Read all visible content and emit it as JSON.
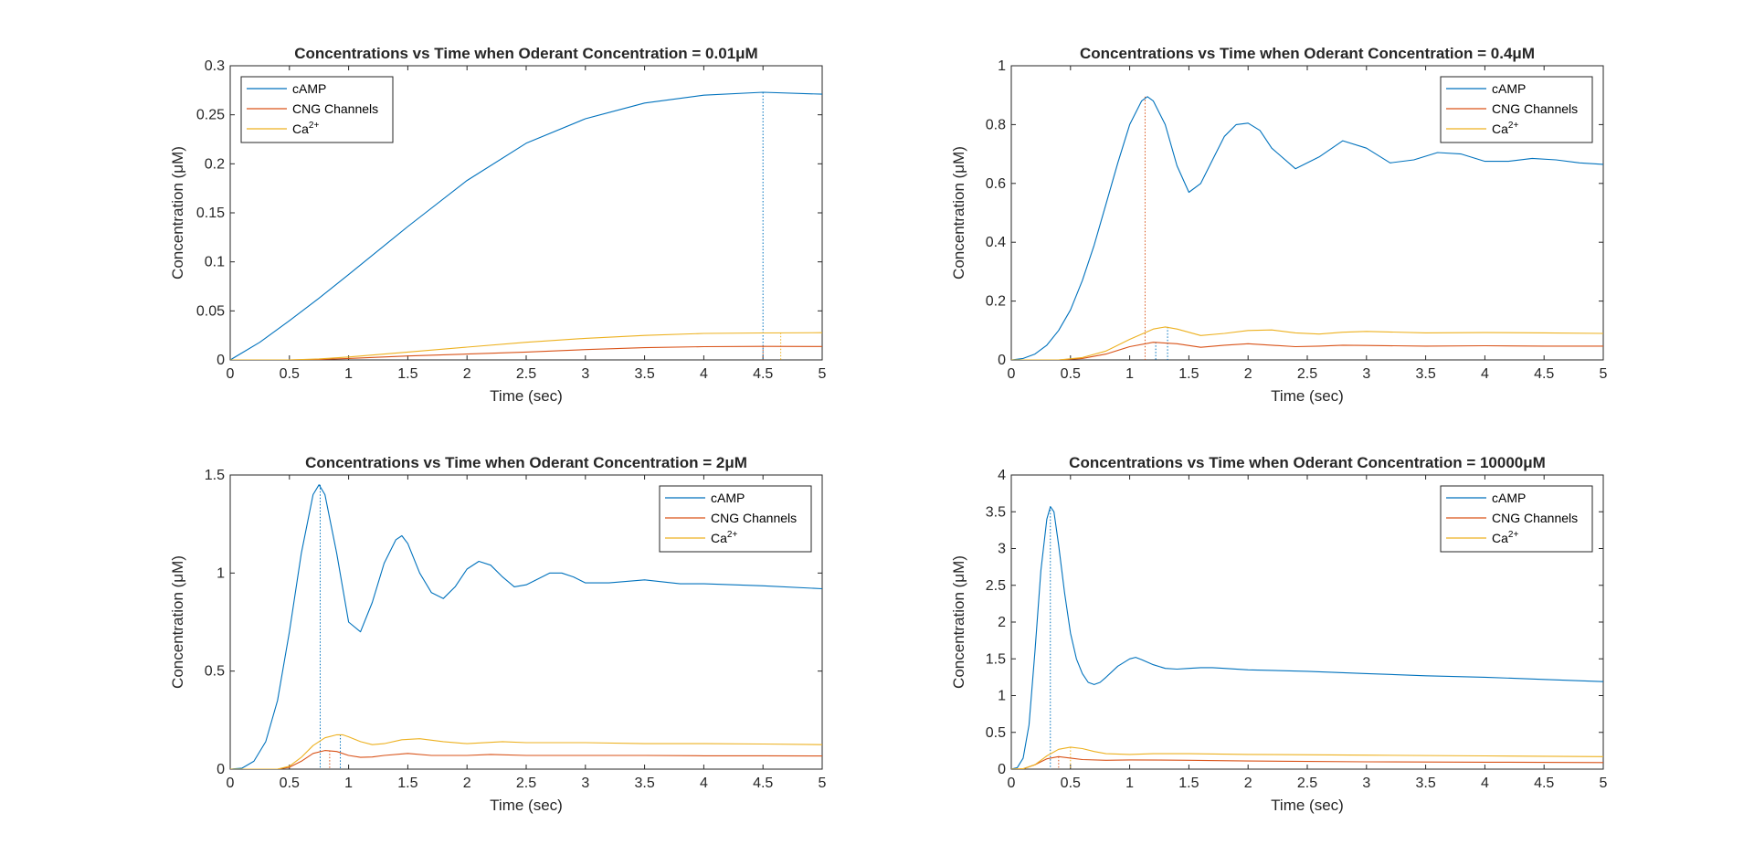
{
  "figure": {
    "background": "#ffffff"
  },
  "chart_data": [
    {
      "type": "line",
      "title": "Concentrations vs Time when Oderant Concentration = 0.01μM",
      "xlabel": "Time (sec)",
      "ylabel": "Concentration (μM)",
      "xlim": [
        0,
        5
      ],
      "ylim": [
        0,
        0.3
      ],
      "xticks": [
        0,
        0.5,
        1,
        1.5,
        2,
        2.5,
        3,
        3.5,
        4,
        4.5,
        5
      ],
      "yticks": [
        0,
        0.05,
        0.1,
        0.15,
        0.2,
        0.25,
        0.3
      ],
      "xtick_labels": [
        "0",
        "0.5",
        "1",
        "1.5",
        "2",
        "2.5",
        "3",
        "3.5",
        "4",
        "4.5",
        "5"
      ],
      "ytick_labels": [
        "0",
        "0.05",
        "0.1",
        "0.15",
        "0.2",
        "0.25",
        "0.3"
      ],
      "grid": false,
      "legend_position": "top-left",
      "series": [
        {
          "name": "cAMP",
          "color": "#0072BD",
          "x": [
            0,
            0.25,
            0.5,
            0.75,
            1,
            1.5,
            2,
            2.5,
            3,
            3.5,
            4,
            4.5,
            5
          ],
          "y": [
            0,
            0.018,
            0.04,
            0.063,
            0.087,
            0.136,
            0.183,
            0.221,
            0.246,
            0.262,
            0.27,
            0.273,
            0.271
          ]
        },
        {
          "name": "CNG Channels",
          "color": "#D95319",
          "x": [
            0,
            0.5,
            0.75,
            1,
            1.5,
            2,
            2.5,
            3,
            3.5,
            4,
            4.5,
            5
          ],
          "y": [
            0,
            0,
            0.0005,
            0.0015,
            0.004,
            0.006,
            0.008,
            0.0105,
            0.0125,
            0.0135,
            0.0138,
            0.0137
          ]
        },
        {
          "name": "Ca²⁺",
          "color": "#EDB120",
          "x": [
            0,
            0.5,
            0.75,
            1,
            1.5,
            2,
            2.5,
            3,
            3.5,
            4,
            4.5,
            5
          ],
          "y": [
            0,
            0,
            0.001,
            0.003,
            0.008,
            0.013,
            0.018,
            0.022,
            0.025,
            0.027,
            0.0275,
            0.0278
          ]
        }
      ],
      "markers": [
        {
          "x": 4.5,
          "y": 0.273,
          "color": "#0072BD"
        },
        {
          "x": 4.5,
          "y": 0.0138,
          "color": "#D95319"
        },
        {
          "x": 4.65,
          "y": 0.0277,
          "color": "#EDB120"
        }
      ]
    },
    {
      "type": "line",
      "title": "Concentrations vs Time when Oderant Concentration = 0.4μM",
      "xlabel": "Time (sec)",
      "ylabel": "Concentration (μM)",
      "xlim": [
        0,
        5
      ],
      "ylim": [
        0,
        1
      ],
      "xticks": [
        0,
        0.5,
        1,
        1.5,
        2,
        2.5,
        3,
        3.5,
        4,
        4.5,
        5
      ],
      "yticks": [
        0,
        0.2,
        0.4,
        0.6,
        0.8,
        1
      ],
      "xtick_labels": [
        "0",
        "0.5",
        "1",
        "1.5",
        "2",
        "2.5",
        "3",
        "3.5",
        "4",
        "4.5",
        "5"
      ],
      "ytick_labels": [
        "0",
        "0.2",
        "0.4",
        "0.6",
        "0.8",
        "1"
      ],
      "grid": false,
      "legend_position": "top-right",
      "series": [
        {
          "name": "cAMP",
          "color": "#0072BD",
          "x": [
            0,
            0.1,
            0.2,
            0.3,
            0.4,
            0.5,
            0.6,
            0.7,
            0.8,
            0.9,
            1.0,
            1.1,
            1.15,
            1.2,
            1.3,
            1.4,
            1.5,
            1.6,
            1.7,
            1.8,
            1.9,
            2.0,
            2.1,
            2.2,
            2.4,
            2.6,
            2.8,
            3.0,
            3.2,
            3.4,
            3.6,
            3.8,
            4.0,
            4.2,
            4.4,
            4.6,
            4.8,
            5.0
          ],
          "y": [
            0,
            0.005,
            0.02,
            0.05,
            0.1,
            0.17,
            0.27,
            0.39,
            0.53,
            0.67,
            0.8,
            0.88,
            0.895,
            0.88,
            0.8,
            0.66,
            0.57,
            0.6,
            0.68,
            0.76,
            0.8,
            0.805,
            0.78,
            0.72,
            0.65,
            0.69,
            0.745,
            0.72,
            0.67,
            0.68,
            0.705,
            0.7,
            0.675,
            0.675,
            0.685,
            0.68,
            0.67,
            0.665
          ]
        },
        {
          "name": "CNG Channels",
          "color": "#D95319",
          "x": [
            0,
            0.4,
            0.6,
            0.8,
            1.0,
            1.2,
            1.4,
            1.6,
            1.8,
            2.0,
            2.2,
            2.4,
            2.6,
            2.8,
            3.0,
            3.5,
            4.0,
            4.5,
            5.0
          ],
          "y": [
            0,
            0,
            0.005,
            0.02,
            0.045,
            0.06,
            0.055,
            0.043,
            0.05,
            0.055,
            0.05,
            0.045,
            0.047,
            0.05,
            0.049,
            0.047,
            0.048,
            0.047,
            0.047
          ]
        },
        {
          "name": "Ca²⁺",
          "color": "#EDB120",
          "x": [
            0,
            0.4,
            0.6,
            0.8,
            1.0,
            1.2,
            1.3,
            1.4,
            1.6,
            1.8,
            2.0,
            2.2,
            2.4,
            2.6,
            2.8,
            3.0,
            3.5,
            4.0,
            4.5,
            5.0
          ],
          "y": [
            0,
            0,
            0.008,
            0.03,
            0.07,
            0.105,
            0.112,
            0.105,
            0.083,
            0.09,
            0.1,
            0.102,
            0.092,
            0.088,
            0.094,
            0.097,
            0.092,
            0.093,
            0.092,
            0.09
          ]
        }
      ],
      "markers": [
        {
          "x": 1.13,
          "y": 0.895,
          "color": "#D95319"
        },
        {
          "x": 1.22,
          "y": 0.06,
          "color": "#0072BD"
        },
        {
          "x": 1.32,
          "y": 0.112,
          "color": "#0072BD"
        }
      ]
    },
    {
      "type": "line",
      "title": "Concentrations vs Time when Oderant Concentration = 2μM",
      "xlabel": "Time (sec)",
      "ylabel": "Concentration (μM)",
      "xlim": [
        0,
        5
      ],
      "ylim": [
        0,
        1.5
      ],
      "xticks": [
        0,
        0.5,
        1,
        1.5,
        2,
        2.5,
        3,
        3.5,
        4,
        4.5,
        5
      ],
      "yticks": [
        0,
        0.5,
        1,
        1.5
      ],
      "xtick_labels": [
        "0",
        "0.5",
        "1",
        "1.5",
        "2",
        "2.5",
        "3",
        "3.5",
        "4",
        "4.5",
        "5"
      ],
      "ytick_labels": [
        "0",
        "0.5",
        "1",
        "1.5"
      ],
      "grid": false,
      "legend_position": "top-right",
      "series": [
        {
          "name": "cAMP",
          "color": "#0072BD",
          "x": [
            0,
            0.1,
            0.2,
            0.3,
            0.4,
            0.5,
            0.6,
            0.7,
            0.75,
            0.8,
            0.9,
            1.0,
            1.1,
            1.2,
            1.3,
            1.4,
            1.45,
            1.5,
            1.6,
            1.7,
            1.8,
            1.9,
            2.0,
            2.1,
            2.2,
            2.3,
            2.4,
            2.5,
            2.6,
            2.7,
            2.8,
            2.9,
            3.0,
            3.2,
            3.5,
            3.8,
            4.0,
            4.5,
            5.0
          ],
          "y": [
            0,
            0.005,
            0.04,
            0.14,
            0.35,
            0.7,
            1.1,
            1.4,
            1.45,
            1.4,
            1.1,
            0.75,
            0.7,
            0.85,
            1.05,
            1.17,
            1.19,
            1.15,
            1.0,
            0.9,
            0.87,
            0.93,
            1.02,
            1.06,
            1.04,
            0.98,
            0.93,
            0.94,
            0.97,
            1.0,
            1.0,
            0.98,
            0.95,
            0.95,
            0.965,
            0.945,
            0.945,
            0.935,
            0.92
          ]
        },
        {
          "name": "CNG Channels",
          "color": "#D95319",
          "x": [
            0,
            0.4,
            0.5,
            0.6,
            0.7,
            0.8,
            0.9,
            1.0,
            1.1,
            1.2,
            1.3,
            1.5,
            1.7,
            2.0,
            2.2,
            2.5,
            3.0,
            3.5,
            4.0,
            4.5,
            5.0
          ],
          "y": [
            0,
            0,
            0.01,
            0.04,
            0.08,
            0.095,
            0.09,
            0.07,
            0.06,
            0.062,
            0.07,
            0.08,
            0.07,
            0.07,
            0.075,
            0.07,
            0.07,
            0.07,
            0.068,
            0.068,
            0.067
          ]
        },
        {
          "name": "Ca²⁺",
          "color": "#EDB120",
          "x": [
            0,
            0.4,
            0.5,
            0.6,
            0.7,
            0.8,
            0.9,
            0.95,
            1.0,
            1.1,
            1.2,
            1.3,
            1.45,
            1.6,
            1.8,
            2.0,
            2.3,
            2.5,
            3.0,
            3.5,
            4.0,
            4.5,
            5.0
          ],
          "y": [
            0,
            0,
            0.015,
            0.06,
            0.12,
            0.16,
            0.175,
            0.175,
            0.165,
            0.14,
            0.125,
            0.13,
            0.15,
            0.155,
            0.14,
            0.13,
            0.14,
            0.135,
            0.135,
            0.13,
            0.13,
            0.128,
            0.125
          ]
        }
      ],
      "markers": [
        {
          "x": 0.76,
          "y": 1.45,
          "color": "#0072BD"
        },
        {
          "x": 0.84,
          "y": 0.095,
          "color": "#D95319"
        },
        {
          "x": 0.93,
          "y": 0.175,
          "color": "#0072BD"
        }
      ]
    },
    {
      "type": "line",
      "title": "Concentrations vs Time when Oderant Concentration = 10000μM",
      "xlabel": "Time (sec)",
      "ylabel": "Concentration (μM)",
      "xlim": [
        0,
        5
      ],
      "ylim": [
        0,
        4
      ],
      "xticks": [
        0,
        0.5,
        1,
        1.5,
        2,
        2.5,
        3,
        3.5,
        4,
        4.5,
        5
      ],
      "yticks": [
        0,
        0.5,
        1,
        1.5,
        2,
        2.5,
        3,
        3.5,
        4
      ],
      "xtick_labels": [
        "0",
        "0.5",
        "1",
        "1.5",
        "2",
        "2.5",
        "3",
        "3.5",
        "4",
        "4.5",
        "5"
      ],
      "ytick_labels": [
        "0",
        "0.5",
        "1",
        "1.5",
        "2",
        "2.5",
        "3",
        "3.5",
        "4"
      ],
      "grid": false,
      "legend_position": "top-right",
      "series": [
        {
          "name": "cAMP",
          "color": "#0072BD",
          "x": [
            0,
            0.05,
            0.1,
            0.15,
            0.2,
            0.25,
            0.3,
            0.33,
            0.36,
            0.4,
            0.45,
            0.5,
            0.55,
            0.6,
            0.65,
            0.7,
            0.75,
            0.8,
            0.9,
            1.0,
            1.05,
            1.1,
            1.2,
            1.3,
            1.4,
            1.5,
            1.6,
            1.7,
            1.8,
            2.0,
            2.5,
            3.0,
            3.5,
            4.0,
            4.5,
            5.0
          ],
          "y": [
            0,
            0.02,
            0.15,
            0.6,
            1.6,
            2.7,
            3.4,
            3.57,
            3.5,
            3.05,
            2.4,
            1.85,
            1.5,
            1.3,
            1.18,
            1.15,
            1.18,
            1.25,
            1.4,
            1.5,
            1.52,
            1.49,
            1.42,
            1.37,
            1.36,
            1.37,
            1.38,
            1.38,
            1.37,
            1.35,
            1.33,
            1.3,
            1.27,
            1.25,
            1.22,
            1.19
          ]
        },
        {
          "name": "CNG Channels",
          "color": "#D95319",
          "x": [
            0,
            0.1,
            0.2,
            0.3,
            0.4,
            0.5,
            0.6,
            0.8,
            1.0,
            1.5,
            2.0,
            3.0,
            4.0,
            5.0
          ],
          "y": [
            0,
            0.005,
            0.06,
            0.14,
            0.17,
            0.15,
            0.13,
            0.12,
            0.125,
            0.12,
            0.11,
            0.1,
            0.095,
            0.09
          ]
        },
        {
          "name": "Ca²⁺",
          "color": "#EDB120",
          "x": [
            0,
            0.1,
            0.2,
            0.3,
            0.4,
            0.5,
            0.6,
            0.7,
            0.8,
            1.0,
            1.2,
            1.5,
            2.0,
            3.0,
            4.0,
            5.0
          ],
          "y": [
            0,
            0.005,
            0.06,
            0.18,
            0.27,
            0.3,
            0.28,
            0.24,
            0.21,
            0.2,
            0.21,
            0.21,
            0.2,
            0.19,
            0.18,
            0.17
          ]
        }
      ],
      "markers": [
        {
          "x": 0.33,
          "y": 3.57,
          "color": "#0072BD"
        },
        {
          "x": 0.4,
          "y": 0.17,
          "color": "#D95319"
        },
        {
          "x": 0.5,
          "y": 0.3,
          "color": "#EDB120"
        }
      ]
    }
  ]
}
